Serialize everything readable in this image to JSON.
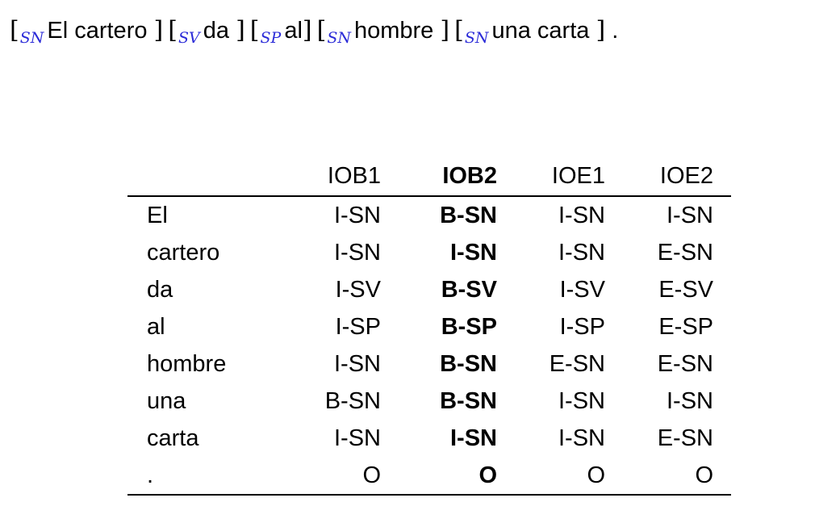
{
  "sentence": {
    "chunks": [
      {
        "open": "[",
        "tag": "SN",
        "text": "El cartero",
        "close": "]"
      },
      {
        "open": "[",
        "tag": "SV",
        "text": "da",
        "close": "]"
      },
      {
        "open": "[",
        "tag": "SP",
        "text": "al",
        "close": "]"
      },
      {
        "open": "[",
        "tag": "SN",
        "text": "hombre",
        "close": "]"
      },
      {
        "open": "[",
        "tag": "SN",
        "text": "una carta",
        "close": "]"
      }
    ],
    "final_punct": "."
  },
  "table": {
    "headers": [
      "",
      "IOB1",
      "IOB2",
      "IOE1",
      "IOE2"
    ],
    "rows": [
      {
        "word": "El",
        "iob1": "I-SN",
        "iob2": "B-SN",
        "ioe1": "I-SN",
        "ioe2": "I-SN"
      },
      {
        "word": "cartero",
        "iob1": "I-SN",
        "iob2": "I-SN",
        "ioe1": "I-SN",
        "ioe2": "E-SN"
      },
      {
        "word": "da",
        "iob1": "I-SV",
        "iob2": "B-SV",
        "ioe1": "I-SV",
        "ioe2": "E-SV"
      },
      {
        "word": "al",
        "iob1": "I-SP",
        "iob2": "B-SP",
        "ioe1": "I-SP",
        "ioe2": "E-SP"
      },
      {
        "word": "hombre",
        "iob1": "I-SN",
        "iob2": "B-SN",
        "ioe1": "E-SN",
        "ioe2": "E-SN"
      },
      {
        "word": "una",
        "iob1": "B-SN",
        "iob2": "B-SN",
        "ioe1": "I-SN",
        "ioe2": "I-SN"
      },
      {
        "word": "carta",
        "iob1": "I-SN",
        "iob2": "I-SN",
        "ioe1": "I-SN",
        "ioe2": "E-SN"
      },
      {
        "word": ".",
        "iob1": "O",
        "iob2": "O",
        "ioe1": "O",
        "ioe2": "O"
      }
    ]
  },
  "colors": {
    "tag": "#2b2bd8",
    "text": "#000000",
    "background": "#ffffff"
  }
}
